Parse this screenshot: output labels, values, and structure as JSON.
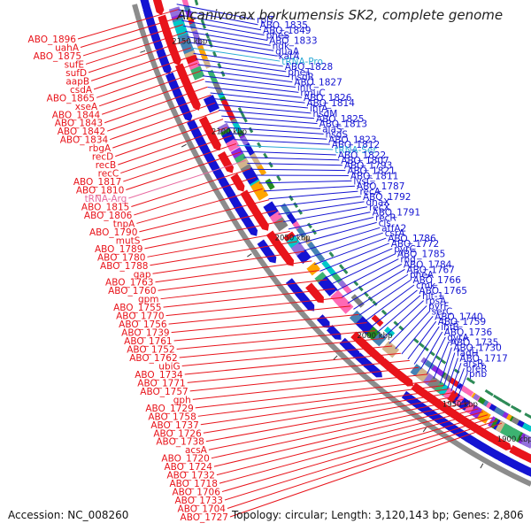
{
  "title": "Alcanivorax borkumensis SK2, complete genome",
  "footer": {
    "accession": "Accession: NC_008260",
    "topology": "Topology: circular; Length: 3,120,143 bp; Genes: 2,806"
  },
  "ticks": [
    "2150 kbp",
    "2100 kbp",
    "2050 kbp",
    "2000 kbp",
    "1950 kbp",
    "1900 kbp"
  ],
  "colors": {
    "left_label": "#e8141b",
    "right_label": "#1414d2",
    "rna_label": "#e86aa0",
    "rna_label_right": "#2aa9d6",
    "backbone": "#8c8c8c"
  },
  "left_labels": [
    {
      "text": "ABO_1896",
      "rna": false
    },
    {
      "text": "uahA",
      "rna": false
    },
    {
      "text": "ABO_1875",
      "rna": false
    },
    {
      "text": "sufE",
      "rna": false
    },
    {
      "text": "sufD",
      "rna": false
    },
    {
      "text": "aapB",
      "rna": false
    },
    {
      "text": "csdA",
      "rna": false
    },
    {
      "text": "ABO_1865",
      "rna": false
    },
    {
      "text": "xseA",
      "rna": false
    },
    {
      "text": "ABO_1844",
      "rna": false
    },
    {
      "text": "ABO_1843",
      "rna": false
    },
    {
      "text": "ABO_1842",
      "rna": false
    },
    {
      "text": "ABO_1834",
      "rna": false
    },
    {
      "text": "rbgA",
      "rna": false
    },
    {
      "text": "recD",
      "rna": false
    },
    {
      "text": "recB",
      "rna": false
    },
    {
      "text": "recC",
      "rna": false
    },
    {
      "text": "ABO_1817",
      "rna": false
    },
    {
      "text": "ABO_1810",
      "rna": false
    },
    {
      "text": "tRNA-Arg",
      "rna": true
    },
    {
      "text": "ABO_1815",
      "rna": false
    },
    {
      "text": "ABO_1806",
      "rna": false
    },
    {
      "text": "tnpA",
      "rna": false
    },
    {
      "text": "ABO_1790",
      "rna": false
    },
    {
      "text": "mutS",
      "rna": false
    },
    {
      "text": "ABO_1789",
      "rna": false
    },
    {
      "text": "ABO_1780",
      "rna": false
    },
    {
      "text": "ABO_1788",
      "rna": false
    },
    {
      "text": "gap",
      "rna": false
    },
    {
      "text": "ABO_1763",
      "rna": false
    },
    {
      "text": "ABO_1760",
      "rna": false
    },
    {
      "text": "gpm",
      "rna": false
    },
    {
      "text": "ABO_1755",
      "rna": false
    },
    {
      "text": "ABO_1770",
      "rna": false
    },
    {
      "text": "ABO_1756",
      "rna": false
    },
    {
      "text": "ABO_1739",
      "rna": false
    },
    {
      "text": "ABO_1761",
      "rna": false
    },
    {
      "text": "ABO_1752",
      "rna": false
    },
    {
      "text": "ABO_1762",
      "rna": false
    },
    {
      "text": "ubiG",
      "rna": false
    },
    {
      "text": "ABO_1734",
      "rna": false
    },
    {
      "text": "ABO_1771",
      "rna": false
    },
    {
      "text": "ABO_1757",
      "rna": false
    },
    {
      "text": "gph",
      "rna": false
    },
    {
      "text": "ABO_1729",
      "rna": false
    },
    {
      "text": "ABO_1758",
      "rna": false
    },
    {
      "text": "ABO_1737",
      "rna": false
    },
    {
      "text": "ABO_1726",
      "rna": false
    },
    {
      "text": "ABO_1738",
      "rna": false
    },
    {
      "text": "acsA",
      "rna": false
    },
    {
      "text": "ABO_1720",
      "rna": false
    },
    {
      "text": "ABO_1724",
      "rna": false
    },
    {
      "text": "ABO_1732",
      "rna": false
    },
    {
      "text": "ABO_1718",
      "rna": false
    },
    {
      "text": "ABO_1706",
      "rna": false
    },
    {
      "text": "ABO_1733",
      "rna": false
    },
    {
      "text": "ABO_1704",
      "rna": false
    },
    {
      "text": "ABO_1727",
      "rna": false
    }
  ],
  "right_labels": [
    {
      "text": "rplT",
      "rna": false
    },
    {
      "text": "ABO_1835",
      "rna": false
    },
    {
      "text": "ABO_1849",
      "rna": false
    },
    {
      "text": "pheS",
      "rna": false
    },
    {
      "text": "ABO_1833",
      "rna": false
    },
    {
      "text": "ndk",
      "rna": false
    },
    {
      "text": "guaA",
      "rna": false
    },
    {
      "text": "katA",
      "rna": false
    },
    {
      "text": "tRNA-Pro",
      "rna": true
    },
    {
      "text": "ABO_1828",
      "rna": false
    },
    {
      "text": "pheT",
      "rna": false
    },
    {
      "text": "hsdR",
      "rna": false
    },
    {
      "text": "ABO_1827",
      "rna": false
    },
    {
      "text": "infC",
      "rna": false
    },
    {
      "text": "rmuC",
      "rna": false
    },
    {
      "text": "ABO_1826",
      "rna": false
    },
    {
      "text": "ABO_1814",
      "rna": false
    },
    {
      "text": "ihfA",
      "rna": false
    },
    {
      "text": "hsdM",
      "rna": false
    },
    {
      "text": "ABO_1825",
      "rna": false
    },
    {
      "text": "ABO_1813",
      "rna": false
    },
    {
      "text": "alaS",
      "rna": false
    },
    {
      "text": "hsdS",
      "rna": false
    },
    {
      "text": "ABO_1823",
      "rna": false
    },
    {
      "text": "ABO_1812",
      "rna": false
    },
    {
      "text": "tRNA-Ser",
      "rna": true
    },
    {
      "text": "ABO_1822",
      "rna": false
    },
    {
      "text": "ABO_1807",
      "rna": false
    },
    {
      "text": "ABO_1793",
      "rna": false
    },
    {
      "text": "ABO_1821",
      "rna": false
    },
    {
      "text": "ABO_1811",
      "rna": false
    },
    {
      "text": "lysC",
      "rna": false
    },
    {
      "text": "ABO_1787",
      "rna": false
    },
    {
      "text": "recA",
      "rna": false
    },
    {
      "text": "ABO_1792",
      "rna": false
    },
    {
      "text": "dnaX",
      "rna": false
    },
    {
      "text": "recX",
      "rna": false
    },
    {
      "text": "ABO_1791",
      "rna": false
    },
    {
      "text": "recR",
      "rna": false
    },
    {
      "text": "cls",
      "rna": false
    },
    {
      "text": "atfA2",
      "rna": false
    },
    {
      "text": "csrA",
      "rna": false
    },
    {
      "text": "ABO_1786",
      "rna": false
    },
    {
      "text": "ABO_1772",
      "rna": false
    },
    {
      "text": "pyrC",
      "rna": false
    },
    {
      "text": "ABO_1785",
      "rna": false
    },
    {
      "text": "rnd",
      "rna": false
    },
    {
      "text": "ABO_1784",
      "rna": false
    },
    {
      "text": "ABO_1767",
      "rna": false
    },
    {
      "text": "pheA",
      "rna": false
    },
    {
      "text": "ABO_1766",
      "rna": false
    },
    {
      "text": "cmk",
      "rna": false
    },
    {
      "text": "ABO_1765",
      "rna": false
    },
    {
      "text": "hit-1",
      "rna": false
    },
    {
      "text": "rpsA",
      "rna": false
    },
    {
      "text": "pyrF",
      "rna": false
    },
    {
      "text": "serC",
      "rna": false
    },
    {
      "text": "ABO_1740",
      "rna": false
    },
    {
      "text": "ABO_1759",
      "rna": false
    },
    {
      "text": "ihfB",
      "rna": false
    },
    {
      "text": "ABO_1736",
      "rna": false
    },
    {
      "text": "gyrA",
      "rna": false
    },
    {
      "text": "ABO_1735",
      "rna": false
    },
    {
      "text": "ABO_1730",
      "rna": false
    },
    {
      "text": "fadH",
      "rna": false
    },
    {
      "text": "ABO_1717",
      "rna": false
    },
    {
      "text": "arsR",
      "rna": false
    },
    {
      "text": "pfeR",
      "rna": false
    },
    {
      "text": "pnb",
      "rna": false
    }
  ]
}
